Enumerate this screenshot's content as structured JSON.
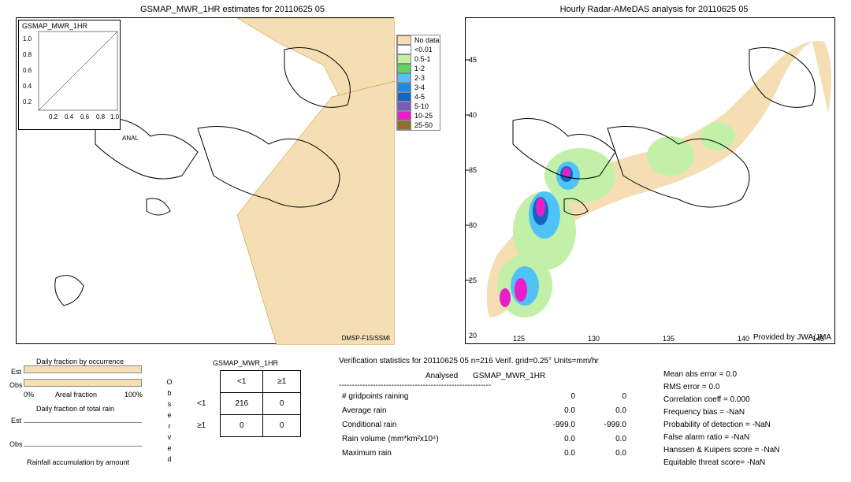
{
  "left_map": {
    "title": "GSMAP_MWR_1HR estimates for 20110625 05",
    "inset_title": "GSMAP_MWR_1HR",
    "inset_x_label": "ANAL",
    "inset_ticks_y": [
      "1.0",
      "0.8",
      "0.6",
      "0.4",
      "0.2"
    ],
    "inset_ticks_x": [
      "0.2",
      "0.4",
      "0.6",
      "0.8",
      "1.0"
    ],
    "footer": "DMSP-F15/SSMI",
    "nodata_color": "#f5deb3",
    "coast_color": "#000000",
    "bg_color": "#ffffff"
  },
  "right_map": {
    "title": "Hourly Radar-AMeDAS analysis for 20110625 05",
    "footer": "Provided by JWA/JMA",
    "y_ticks": [
      "45",
      "40",
      "35",
      "30",
      "25",
      "20"
    ],
    "x_ticks": [
      "125",
      "130",
      "135",
      "140",
      "145"
    ],
    "region_main_color": "#f5deb3",
    "rain_light_color": "#c3f0a8",
    "rain_med_color": "#4fc3f7",
    "rain_heavy_color": "#1565c0",
    "rain_vheavy_color": "#e91ec9",
    "bg_color": "#ffffff"
  },
  "legend": {
    "items": [
      {
        "label": "No data",
        "color": "#f5deb3"
      },
      {
        "label": "<0.01",
        "color": "#ffffff"
      },
      {
        "label": "0.5-1",
        "color": "#c3f0a8"
      },
      {
        "label": "1-2",
        "color": "#5fd45f"
      },
      {
        "label": "2-3",
        "color": "#4fc3f7"
      },
      {
        "label": "3-4",
        "color": "#1e88e5"
      },
      {
        "label": "4-5",
        "color": "#1565c0"
      },
      {
        "label": "5-10",
        "color": "#7e57c2"
      },
      {
        "label": "10-25",
        "color": "#e91ec9"
      },
      {
        "label": "25-50",
        "color": "#8d6e2f"
      }
    ]
  },
  "bottom_left": {
    "occ_title": "Daily fraction by occurrence",
    "est_label": "Est",
    "obs_label": "Obs",
    "axis_left": "0%",
    "axis_mid": "Areal fraction",
    "axis_right": "100%",
    "total_title": "Daily fraction of total rain",
    "accum_title": "Rainfall accumulation by amount",
    "bar_color": "#f5deb3",
    "est_width_pct": 100,
    "obs_width_pct": 100
  },
  "contingency": {
    "title": "GSMAP_MWR_1HR",
    "col1": "<1",
    "col2": "≥1",
    "row1": "<1",
    "row2": "≥1",
    "side_label": "Observed",
    "c11": "216",
    "c12": "0",
    "c21": "0",
    "c22": "0"
  },
  "verif": {
    "header": "Verification statistics for 20110625 05  n=216  Verif. grid=0.25°  Units=mm/hr",
    "col_analysed": "Analysed",
    "col_model": "GSMAP_MWR_1HR",
    "dashes": "----------------------------------------------------------",
    "rows": [
      {
        "name": "# gridpoints raining",
        "a": "0",
        "b": "0"
      },
      {
        "name": "Average rain",
        "a": "0.0",
        "b": "0.0"
      },
      {
        "name": "Conditional rain",
        "a": "-999.0",
        "b": "-999.0"
      },
      {
        "name": "Rain volume (mm*km²x10⁴)",
        "a": "0.0",
        "b": "0.0"
      },
      {
        "name": "Maximum rain",
        "a": "0.0",
        "b": "0.0"
      }
    ],
    "stats": [
      "Mean abs error = 0.0",
      "RMS error = 0.0",
      "Correlation coeff = 0.000",
      "Frequency bias = -NaN",
      "Probability of detection = -NaN",
      "False alarm ratio = -NaN",
      "Hanssen & Kuipers score = -NaN",
      "Equitable threat score= -NaN"
    ]
  }
}
